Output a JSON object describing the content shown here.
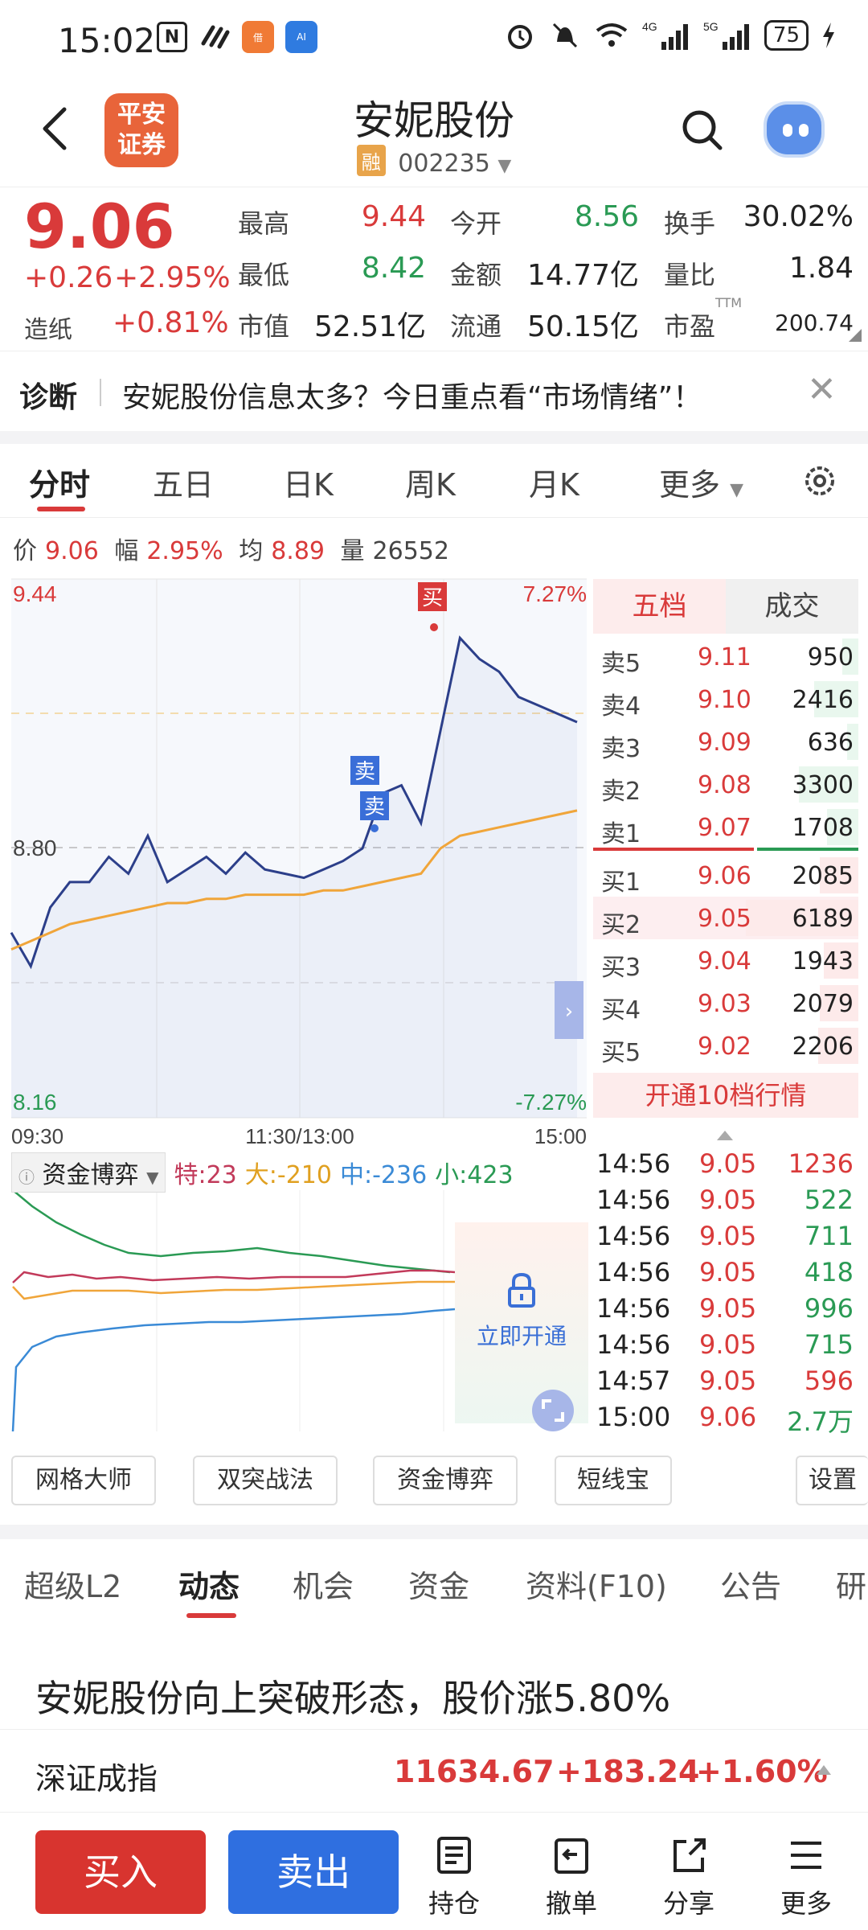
{
  "status": {
    "time": "15:02",
    "battery": "75",
    "icons": [
      "nfc-icon",
      "app-icon",
      "ai-app-icon",
      "alarm-icon",
      "mute-icon",
      "wifi-icon",
      "signal-4g-icon",
      "signal-5g-icon",
      "charging-icon"
    ]
  },
  "header": {
    "logo_text": "平安证券",
    "logo_line1": "平安",
    "logo_line2": "证券",
    "title": "安妮股份",
    "badge": "融",
    "code": "002235"
  },
  "quote": {
    "price": "9.06",
    "change": "+0.26",
    "change_pct": "+2.95%",
    "sector_label": "造纸",
    "sector_value": "+0.81%",
    "high_label": "最高",
    "high": "9.44",
    "low_label": "最低",
    "low": "8.42",
    "cap_label": "市值",
    "cap": "52.51亿",
    "open_label": "今开",
    "open": "8.56",
    "amount_label": "金额",
    "amount": "14.77亿",
    "float_label": "流通",
    "float": "50.15亿",
    "turnover_label": "换手",
    "turnover": "30.02%",
    "ratio_label": "量比",
    "ratio": "1.84",
    "pe_label": "市盈",
    "pe_sup": "TTM",
    "pe": "200.74"
  },
  "diagnose": {
    "label": "诊断",
    "text": "安妮股份信息太多？今日重点看“市场情绪”！"
  },
  "tabs": [
    "分时",
    "五日",
    "日K",
    "周K",
    "月K",
    "更多"
  ],
  "info": {
    "price_label": "价",
    "price": "9.06",
    "amp_label": "幅",
    "amp": "2.95%",
    "avg_label": "均",
    "avg": "8.89",
    "vol_label": "量",
    "vol": "26552"
  },
  "chart": {
    "y_max": "9.44",
    "y_mid": "8.80",
    "y_min": "8.16",
    "pct_max": "7.27%",
    "pct_min": "-7.27%",
    "x_start": "09:30",
    "x_mid": "11:30/13:00",
    "x_end": "15:00",
    "sell_mark": "卖",
    "buy_mark": "买"
  },
  "chart_data": {
    "type": "line",
    "ylim": [
      8.16,
      9.44
    ],
    "series": [
      {
        "values": [
          8.6,
          8.52,
          8.66,
          8.72,
          8.72,
          8.78,
          8.74,
          8.83,
          8.72,
          8.75,
          8.78,
          8.74,
          8.79,
          8.75,
          8.74,
          8.73,
          8.75,
          8.77,
          8.8,
          8.93,
          8.95,
          8.86,
          9.08,
          9.3,
          9.25,
          9.22,
          9.16,
          9.14,
          9.12,
          9.1
        ]
      },
      {
        "values": [
          8.56,
          8.58,
          8.6,
          8.62,
          8.63,
          8.64,
          8.65,
          8.66,
          8.67,
          8.67,
          8.68,
          8.68,
          8.69,
          8.69,
          8.69,
          8.69,
          8.7,
          8.7,
          8.71,
          8.72,
          8.73,
          8.74,
          8.8,
          8.83,
          8.84,
          8.85,
          8.86,
          8.87,
          8.88,
          8.89
        ]
      }
    ]
  },
  "book": {
    "tab_five": "五档",
    "tab_deal": "成交",
    "asks": [
      {
        "label": "卖5",
        "price": "9.11",
        "vol": "950",
        "fill": 0.14
      },
      {
        "label": "卖4",
        "price": "9.10",
        "vol": "2416",
        "fill": 0.39
      },
      {
        "label": "卖3",
        "price": "9.09",
        "vol": "636",
        "fill": 0.1
      },
      {
        "label": "卖2",
        "price": "9.08",
        "vol": "3300",
        "fill": 0.53
      },
      {
        "label": "卖1",
        "price": "9.07",
        "vol": "1708",
        "fill": 0.28
      }
    ],
    "bids": [
      {
        "label": "买1",
        "price": "9.06",
        "vol": "2085",
        "fill": 0.34
      },
      {
        "label": "买2",
        "price": "9.05",
        "vol": "6189",
        "fill": 1.0
      },
      {
        "label": "买3",
        "price": "9.04",
        "vol": "1943",
        "fill": 0.31
      },
      {
        "label": "买4",
        "price": "9.03",
        "vol": "2079",
        "fill": 0.34
      },
      {
        "label": "买5",
        "price": "9.02",
        "vol": "2206",
        "fill": 0.36
      }
    ],
    "open10": "开通10档行情"
  },
  "ticks": [
    {
      "time": "14:56",
      "price": "9.05",
      "vol": "1236"
    },
    {
      "time": "14:56",
      "price": "9.05",
      "vol": "522"
    },
    {
      "time": "14:56",
      "price": "9.05",
      "vol": "711"
    },
    {
      "time": "14:56",
      "price": "9.05",
      "vol": "418"
    },
    {
      "time": "14:56",
      "price": "9.05",
      "vol": "996"
    },
    {
      "time": "14:56",
      "price": "9.05",
      "vol": "715"
    },
    {
      "time": "14:57",
      "price": "9.05",
      "vol": "596"
    },
    {
      "time": "15:00",
      "price": "9.06",
      "vol": "2.7万"
    }
  ],
  "fund": {
    "selector": "资金博弈",
    "te": "特:23",
    "da": "大:-210",
    "zhong": "中:-236",
    "xiao": "小:423",
    "unlock": "立即开通"
  },
  "tools": [
    "网格大师",
    "双突战法",
    "资金博弈",
    "短线宝",
    "设置"
  ],
  "news_tabs": [
    "超级L2",
    "动态",
    "机会",
    "资金",
    "资料(F10)",
    "公告",
    "研"
  ],
  "headline": "安妮股份向上突破形态，股价涨5.80%",
  "index": {
    "name": "深证成指",
    "value": "11634.67",
    "change": "+183.24",
    "pct": "+1.60%"
  },
  "bottom": {
    "buy": "买入",
    "sell": "卖出",
    "hold": "持仓",
    "cancel": "撤单",
    "share": "分享",
    "more": "更多"
  },
  "colors": {
    "up": "#d93a3a",
    "down": "#2a9a54",
    "accent_blue": "#2f6fe0",
    "price_line": "#2c3f8a",
    "avg_line": "#f0a53a"
  }
}
